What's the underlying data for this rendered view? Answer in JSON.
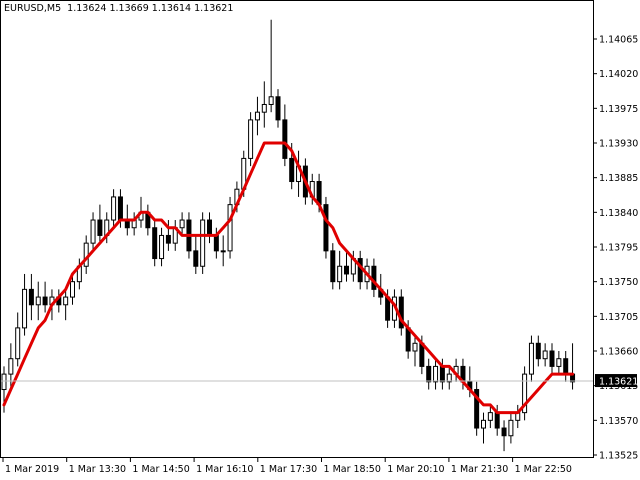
{
  "header": {
    "symbol_period": "EURUSD,M5",
    "ohlc": "1.13624 1.13669 1.13614 1.13621"
  },
  "colors": {
    "background": "#ffffff",
    "axis": "#000000",
    "candle": "#000000",
    "ma_line": "#e00000",
    "bid_line": "#c0c0c0",
    "bid_tag_bg": "#000000",
    "bid_tag_text": "#ffffff"
  },
  "price_axis": {
    "labels": [
      "1.14065",
      "1.14020",
      "1.13975",
      "1.13930",
      "1.13885",
      "1.13840",
      "1.13795",
      "1.13750",
      "1.13705",
      "1.13660",
      "1.13615",
      "1.13570",
      "1.13525"
    ],
    "values": [
      1.14065,
      1.1402,
      1.13975,
      1.1393,
      1.13885,
      1.1384,
      1.13795,
      1.1375,
      1.13705,
      1.1366,
      1.13615,
      1.1357,
      1.13525
    ],
    "current_bid": "1.13621"
  },
  "time_axis": {
    "labels": [
      "1 Mar 2019",
      "1 Mar 13:30",
      "1 Mar 14:50",
      "1 Mar 16:10",
      "1 Mar 17:30",
      "1 Mar 18:50",
      "1 Mar 20:10",
      "1 Mar 21:30",
      "1 Mar 22:50"
    ]
  },
  "chart_data": {
    "type": "candlestick",
    "symbol": "EURUSD",
    "timeframe": "M5",
    "time_start": "1 Mar 12:10",
    "bar_minutes": 5,
    "ylim": [
      1.1352,
      1.1409
    ],
    "ohlc": [
      [
        1.1361,
        1.1364,
        1.1358,
        1.1363
      ],
      [
        1.1363,
        1.1367,
        1.1361,
        1.1365
      ],
      [
        1.1365,
        1.1371,
        1.1364,
        1.1369
      ],
      [
        1.1369,
        1.1376,
        1.1368,
        1.1374
      ],
      [
        1.1374,
        1.1376,
        1.137,
        1.1372
      ],
      [
        1.1372,
        1.1375,
        1.137,
        1.1373
      ],
      [
        1.1373,
        1.1375,
        1.1371,
        1.1372
      ],
      [
        1.1372,
        1.1374,
        1.137,
        1.1373
      ],
      [
        1.1373,
        1.1374,
        1.1371,
        1.1372
      ],
      [
        1.1372,
        1.1374,
        1.137,
        1.1373
      ],
      [
        1.1373,
        1.1376,
        1.1372,
        1.1375
      ],
      [
        1.1375,
        1.1378,
        1.1374,
        1.1377
      ],
      [
        1.1377,
        1.1381,
        1.1376,
        1.138
      ],
      [
        1.138,
        1.1384,
        1.1379,
        1.1383
      ],
      [
        1.1383,
        1.1385,
        1.138,
        1.1381
      ],
      [
        1.1381,
        1.1384,
        1.138,
        1.1383
      ],
      [
        1.1383,
        1.1387,
        1.1382,
        1.1386
      ],
      [
        1.1386,
        1.1387,
        1.1382,
        1.1383
      ],
      [
        1.1383,
        1.1385,
        1.1381,
        1.1382
      ],
      [
        1.1382,
        1.1384,
        1.1381,
        1.1383
      ],
      [
        1.1383,
        1.1386,
        1.1382,
        1.1384
      ],
      [
        1.1384,
        1.1385,
        1.1381,
        1.1382
      ],
      [
        1.1382,
        1.1383,
        1.1377,
        1.1378
      ],
      [
        1.1378,
        1.1382,
        1.1377,
        1.1381
      ],
      [
        1.1381,
        1.1383,
        1.1379,
        1.138
      ],
      [
        1.138,
        1.1383,
        1.1379,
        1.1382
      ],
      [
        1.1382,
        1.1384,
        1.1381,
        1.1383
      ],
      [
        1.1383,
        1.1384,
        1.1378,
        1.1379
      ],
      [
        1.1379,
        1.1381,
        1.1376,
        1.1377
      ],
      [
        1.1377,
        1.1384,
        1.1376,
        1.1383
      ],
      [
        1.1383,
        1.1384,
        1.138,
        1.1381
      ],
      [
        1.1381,
        1.1382,
        1.1378,
        1.1379
      ],
      [
        1.1379,
        1.1381,
        1.1377,
        1.1379
      ],
      [
        1.1379,
        1.1386,
        1.1378,
        1.1385
      ],
      [
        1.1385,
        1.1388,
        1.1384,
        1.1387
      ],
      [
        1.1387,
        1.1392,
        1.1386,
        1.1391
      ],
      [
        1.1391,
        1.1397,
        1.139,
        1.1396
      ],
      [
        1.1396,
        1.1399,
        1.1394,
        1.1397
      ],
      [
        1.1397,
        1.1401,
        1.1395,
        1.1398
      ],
      [
        1.1398,
        1.1409,
        1.1397,
        1.1399
      ],
      [
        1.1399,
        1.14,
        1.1395,
        1.1396
      ],
      [
        1.1396,
        1.1398,
        1.139,
        1.1391
      ],
      [
        1.1391,
        1.1393,
        1.1387,
        1.1388
      ],
      [
        1.1388,
        1.1392,
        1.1386,
        1.139
      ],
      [
        1.139,
        1.1391,
        1.1385,
        1.1386
      ],
      [
        1.1386,
        1.1389,
        1.1385,
        1.1388
      ],
      [
        1.1388,
        1.1389,
        1.1384,
        1.1385
      ],
      [
        1.1385,
        1.1386,
        1.1378,
        1.1379
      ],
      [
        1.1379,
        1.138,
        1.1374,
        1.1375
      ],
      [
        1.1375,
        1.1379,
        1.1374,
        1.1377
      ],
      [
        1.1377,
        1.1379,
        1.1375,
        1.1376
      ],
      [
        1.1376,
        1.1379,
        1.1375,
        1.1378
      ],
      [
        1.1378,
        1.1379,
        1.1374,
        1.1375
      ],
      [
        1.1375,
        1.1378,
        1.1374,
        1.1377
      ],
      [
        1.1377,
        1.1378,
        1.1373,
        1.1374
      ],
      [
        1.1374,
        1.1376,
        1.1372,
        1.1373
      ],
      [
        1.1373,
        1.1374,
        1.1369,
        1.137
      ],
      [
        1.137,
        1.1374,
        1.1369,
        1.1373
      ],
      [
        1.1373,
        1.1374,
        1.1368,
        1.1369
      ],
      [
        1.1369,
        1.137,
        1.1365,
        1.1366
      ],
      [
        1.1366,
        1.1368,
        1.1364,
        1.1367
      ],
      [
        1.1367,
        1.1368,
        1.1363,
        1.1364
      ],
      [
        1.1364,
        1.1365,
        1.1361,
        1.1362
      ],
      [
        1.1362,
        1.1365,
        1.1361,
        1.1364
      ],
      [
        1.1364,
        1.1365,
        1.1361,
        1.1362
      ],
      [
        1.1362,
        1.1364,
        1.1361,
        1.1363
      ],
      [
        1.1363,
        1.1365,
        1.1362,
        1.1364
      ],
      [
        1.1364,
        1.1365,
        1.1361,
        1.1362
      ],
      [
        1.1362,
        1.1364,
        1.136,
        1.1361
      ],
      [
        1.1361,
        1.1362,
        1.1355,
        1.1356
      ],
      [
        1.1356,
        1.1358,
        1.1354,
        1.1357
      ],
      [
        1.1357,
        1.1359,
        1.1356,
        1.1358
      ],
      [
        1.1358,
        1.1359,
        1.1355,
        1.1356
      ],
      [
        1.1356,
        1.1357,
        1.1353,
        1.1355
      ],
      [
        1.1355,
        1.1358,
        1.1354,
        1.1357
      ],
      [
        1.1357,
        1.1359,
        1.1356,
        1.1358
      ],
      [
        1.1358,
        1.1364,
        1.1357,
        1.1363
      ],
      [
        1.1363,
        1.1368,
        1.1362,
        1.1367
      ],
      [
        1.1367,
        1.1368,
        1.1364,
        1.1365
      ],
      [
        1.1365,
        1.1367,
        1.1364,
        1.1366
      ],
      [
        1.1366,
        1.1367,
        1.1363,
        1.1364
      ],
      [
        1.1364,
        1.1366,
        1.1363,
        1.1365
      ],
      [
        1.1365,
        1.1366,
        1.1362,
        1.1363
      ],
      [
        1.1363,
        1.1367,
        1.1361,
        1.1362
      ]
    ],
    "ma_values": [
      1.1359,
      1.1361,
      1.1363,
      1.1365,
      1.1367,
      1.1369,
      1.137,
      1.1372,
      1.1373,
      1.1374,
      1.1376,
      1.1377,
      1.1378,
      1.1379,
      1.138,
      1.1381,
      1.1382,
      1.1383,
      1.1383,
      1.1383,
      1.1384,
      1.1384,
      1.1383,
      1.1383,
      1.1382,
      1.1382,
      1.1381,
      1.1381,
      1.1381,
      1.1381,
      1.1381,
      1.1381,
      1.1382,
      1.1383,
      1.1385,
      1.1387,
      1.1389,
      1.1391,
      1.1393,
      1.1393,
      1.1393,
      1.1393,
      1.1392,
      1.139,
      1.1388,
      1.1386,
      1.1385,
      1.1383,
      1.1382,
      1.138,
      1.1379,
      1.1378,
      1.1377,
      1.1376,
      1.1375,
      1.1374,
      1.1373,
      1.1372,
      1.137,
      1.1369,
      1.1368,
      1.1367,
      1.1366,
      1.1365,
      1.1364,
      1.1364,
      1.1363,
      1.1362,
      1.1361,
      1.136,
      1.1359,
      1.1359,
      1.1358,
      1.1358,
      1.1358,
      1.1358,
      1.1359,
      1.136,
      1.1361,
      1.1362,
      1.1363,
      1.1363,
      1.1363,
      1.1363
    ]
  }
}
